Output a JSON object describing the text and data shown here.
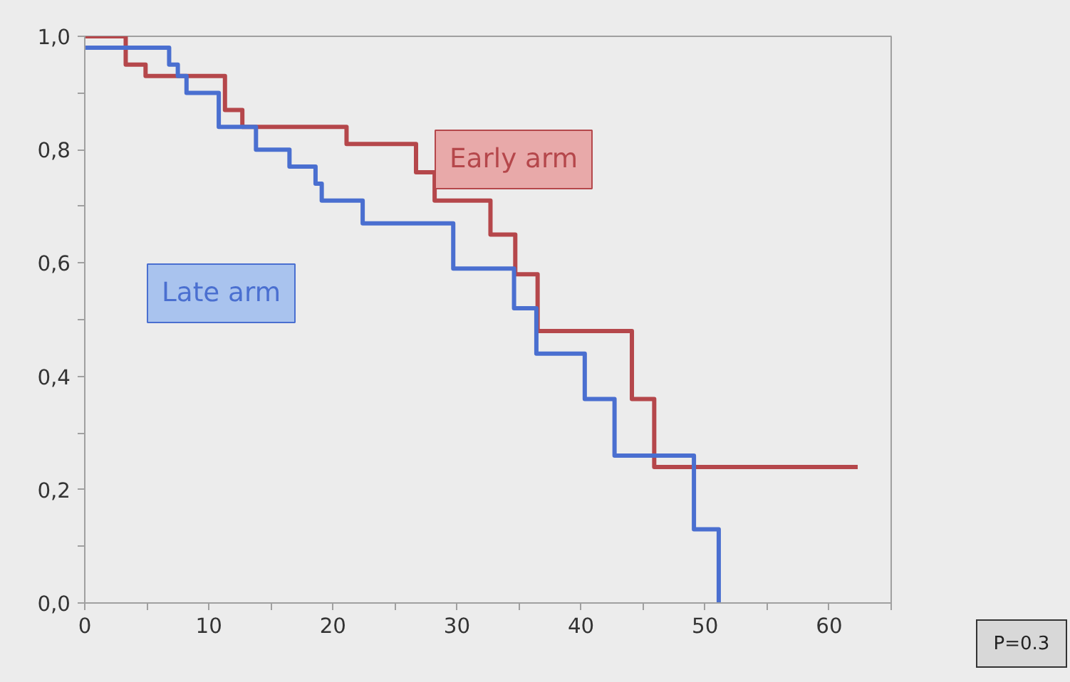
{
  "chart_data": {
    "type": "step",
    "xlim": [
      0,
      65
    ],
    "ylim": [
      0,
      1
    ],
    "xticks": [
      0,
      {
        "value": 5,
        "label": null
      },
      10,
      {
        "value": 15,
        "label": null
      },
      20,
      {
        "value": 25,
        "label": null
      },
      30,
      {
        "value": 35,
        "label": null
      },
      40,
      {
        "value": 45,
        "label": null
      },
      50,
      {
        "value": 55,
        "label": null
      },
      60,
      {
        "value": 65,
        "label": null
      }
    ],
    "yticks": [
      {
        "value": 0,
        "label": "0,0"
      },
      {
        "value": 0.1,
        "label": null
      },
      {
        "value": 0.2,
        "label": "0,2"
      },
      {
        "value": 0.3,
        "label": null
      },
      {
        "value": 0.4,
        "label": "0,4"
      },
      {
        "value": 0.5,
        "label": null
      },
      {
        "value": 0.6,
        "label": "0,6"
      },
      {
        "value": 0.7,
        "label": null
      },
      {
        "value": 0.8,
        "label": "0,8"
      },
      {
        "value": 0.9,
        "label": null
      },
      {
        "value": 1,
        "label": "1,0"
      }
    ],
    "grid": false,
    "legend": false,
    "series": [
      {
        "name": "Early arm",
        "color": "#b5474b",
        "x": [
          0,
          3.3,
          4.9,
          11.3,
          12.7,
          21.1,
          26.7,
          28.2,
          32.7,
          34.7,
          36.5,
          44.1,
          45.9,
          62.3
        ],
        "values": [
          1,
          0.95,
          0.93,
          0.87,
          0.84,
          0.81,
          0.76,
          0.71,
          0.65,
          0.58,
          0.48,
          0.36,
          0.24,
          0.24
        ]
      },
      {
        "name": "Late arm",
        "color": "#4a6fd0",
        "x": [
          0,
          6.8,
          7.5,
          8.2,
          10.8,
          13.8,
          16.5,
          18.6,
          19.1,
          22.4,
          29.7,
          34.6,
          36.4,
          40.3,
          42.7,
          49.1,
          51.1
        ],
        "values": [
          0.98,
          0.95,
          0.93,
          0.9,
          0.84,
          0.8,
          0.77,
          0.74,
          0.71,
          0.67,
          0.59,
          0.52,
          0.44,
          0.36,
          0.26,
          0.13,
          0
        ]
      }
    ],
    "annotations": [
      "P=0.3"
    ]
  }
}
